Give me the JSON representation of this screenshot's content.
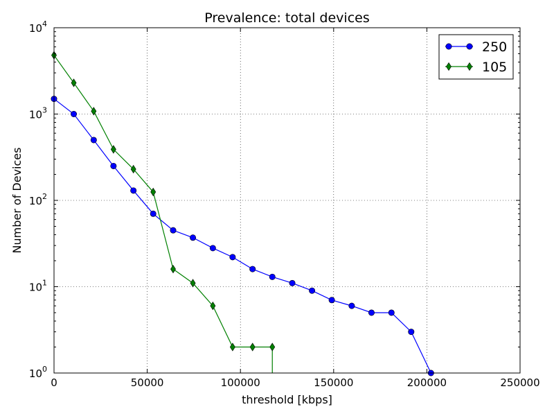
{
  "chart_data": {
    "type": "line",
    "title": "Prevalence: total devices",
    "xlabel": "threshold [kbps]",
    "ylabel": "Number of Devices",
    "xlim": [
      0,
      250000
    ],
    "ylim": [
      1,
      10000
    ],
    "yscale": "log",
    "grid": true,
    "legend_position": "top-right",
    "x_ticks": [
      {
        "value": 0,
        "label": "0"
      },
      {
        "value": 50000,
        "label": "50000"
      },
      {
        "value": 100000,
        "label": "100000"
      },
      {
        "value": 150000,
        "label": "150000"
      },
      {
        "value": 200000,
        "label": "200000"
      },
      {
        "value": 250000,
        "label": "250000"
      }
    ],
    "y_ticks": [
      {
        "value": 1,
        "base": "10",
        "exp": "0"
      },
      {
        "value": 10,
        "base": "10",
        "exp": "1"
      },
      {
        "value": 100,
        "base": "10",
        "exp": "2"
      },
      {
        "value": 1000,
        "base": "10",
        "exp": "3"
      },
      {
        "value": 10000,
        "base": "10",
        "exp": "4"
      }
    ],
    "series": [
      {
        "name": "250",
        "color": "#0000ff",
        "marker": "circle",
        "points": [
          [
            0,
            1500
          ],
          [
            10600,
            1000
          ],
          [
            21300,
            500
          ],
          [
            31900,
            250
          ],
          [
            42600,
            130
          ],
          [
            53200,
            70
          ],
          [
            63900,
            45
          ],
          [
            74500,
            37
          ],
          [
            85200,
            28
          ],
          [
            95800,
            22
          ],
          [
            106500,
            16
          ],
          [
            117100,
            13
          ],
          [
            127800,
            11
          ],
          [
            138400,
            9
          ],
          [
            149000,
            7
          ],
          [
            159700,
            6
          ],
          [
            170300,
            5
          ],
          [
            181000,
            5
          ],
          [
            191600,
            3
          ],
          [
            202200,
            1
          ]
        ]
      },
      {
        "name": "105",
        "color": "#008000",
        "marker": "diamond",
        "points": [
          [
            0,
            4800
          ],
          [
            10600,
            2300
          ],
          [
            21300,
            1080
          ],
          [
            31900,
            390
          ],
          [
            42600,
            230
          ],
          [
            53200,
            125
          ],
          [
            63900,
            16
          ],
          [
            74500,
            11
          ],
          [
            85200,
            6
          ],
          [
            95800,
            2
          ],
          [
            106500,
            2
          ],
          [
            117100,
            2
          ],
          [
            117100,
            1
          ]
        ],
        "marker_count": 12
      }
    ]
  }
}
